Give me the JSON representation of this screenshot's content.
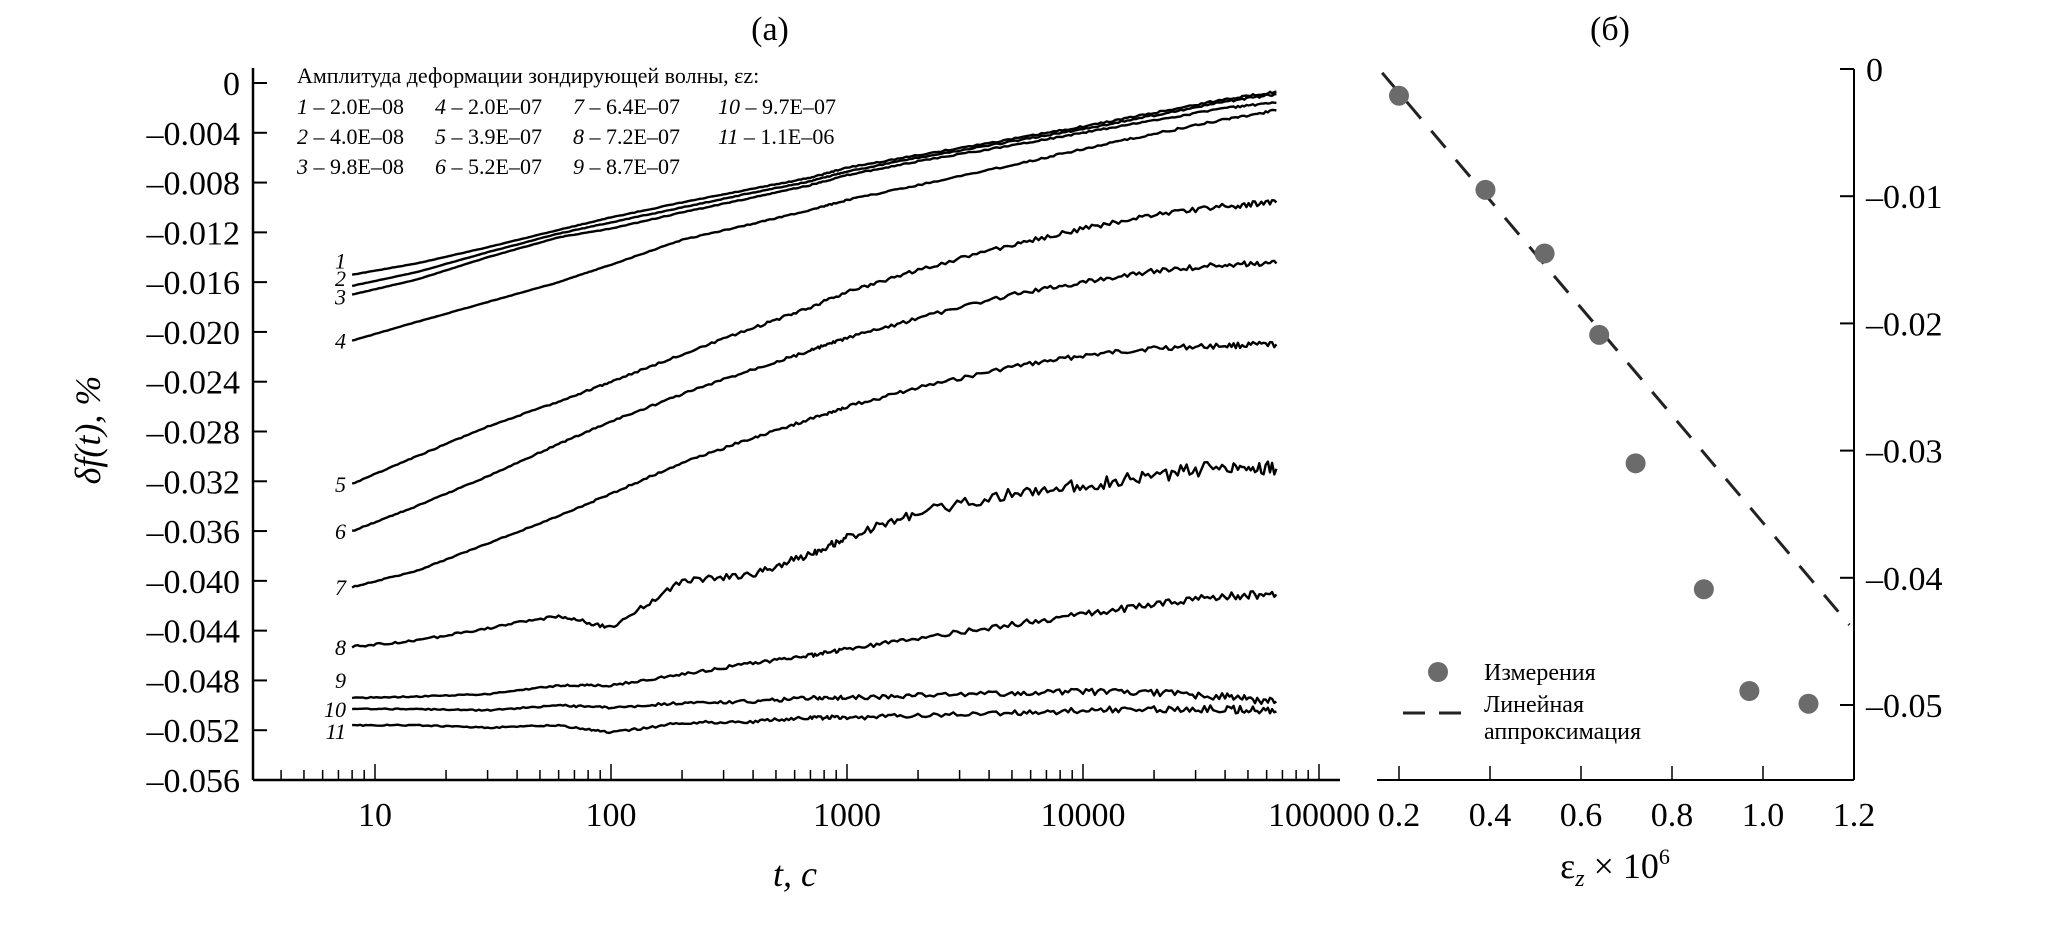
{
  "chart_data": [
    {
      "id": "panel_a",
      "type": "line",
      "title": "(а)",
      "xlabel": "t, с",
      "ylabel": "δf(t), %",
      "xscale": "log",
      "xlim": [
        3,
        100000
      ],
      "ylim": [
        -0.056,
        0
      ],
      "xticks": [
        10,
        100,
        1000,
        10000,
        100000
      ],
      "xtick_labels": [
        "10",
        "100",
        "1000",
        "10000",
        "100000"
      ],
      "yticks": [
        0,
        -0.004,
        -0.008,
        -0.012,
        -0.016,
        -0.02,
        -0.024,
        -0.028,
        -0.032,
        -0.036,
        -0.04,
        -0.044,
        -0.048,
        -0.052,
        -0.056
      ],
      "ytick_labels": [
        "0",
        "–0.004",
        "–0.008",
        "–0.012",
        "–0.016",
        "–0.020",
        "–0.024",
        "–0.028",
        "–0.032",
        "–0.036",
        "–0.040",
        "–0.044",
        "–0.048",
        "–0.052",
        "–0.056"
      ],
      "grid": false,
      "legend": {
        "placement": "top-left",
        "title": "Амплитуда деформации зондирующей волны, εz:",
        "rows": [
          [
            "1 – 2.0E–08",
            "4 – 2.0E–07",
            "7 – 6.4E–07",
            "10 – 9.7E–07"
          ],
          [
            "2 – 4.0E–08",
            "5 – 3.9E–07",
            "8 – 7.2E–07",
            "11 – 1.1E–06"
          ],
          [
            "3 – 9.8E–08",
            "6 – 5.2E–07",
            "9 – 8.7E–07",
            ""
          ]
        ]
      },
      "x": [
        8,
        15,
        30,
        60,
        100,
        200,
        400,
        700,
        1000,
        2000,
        5000,
        10000,
        20000,
        40000,
        66000
      ],
      "series": [
        {
          "name": "1",
          "amplitude": "2.0E-08",
          "values": [
            -0.0154,
            -0.0145,
            -0.0132,
            -0.0118,
            -0.0108,
            -0.0096,
            -0.0085,
            -0.0076,
            -0.0068,
            -0.0058,
            -0.0045,
            -0.0035,
            -0.0024,
            -0.0013,
            -0.0007
          ]
        },
        {
          "name": "2",
          "amplitude": "4.0E-08",
          "values": [
            -0.0163,
            -0.0152,
            -0.0136,
            -0.0121,
            -0.0112,
            -0.01,
            -0.0088,
            -0.0079,
            -0.0071,
            -0.006,
            -0.0047,
            -0.0037,
            -0.0026,
            -0.0015,
            -0.0009
          ]
        },
        {
          "name": "3",
          "amplitude": "9.8E-08",
          "values": [
            -0.017,
            -0.0158,
            -0.014,
            -0.0124,
            -0.0117,
            -0.0104,
            -0.0092,
            -0.0082,
            -0.0074,
            -0.0063,
            -0.005,
            -0.004,
            -0.003,
            -0.002,
            -0.0016
          ]
        },
        {
          "name": "4",
          "amplitude": "2.0E-07",
          "values": [
            -0.0207,
            -0.0192,
            -0.0176,
            -0.016,
            -0.0146,
            -0.0126,
            -0.0113,
            -0.0102,
            -0.0094,
            -0.0082,
            -0.0066,
            -0.0053,
            -0.0041,
            -0.0029,
            -0.0022
          ]
        },
        {
          "name": "5",
          "amplitude": "3.9E-07",
          "values": [
            -0.0322,
            -0.03,
            -0.0276,
            -0.0256,
            -0.024,
            -0.0218,
            -0.0197,
            -0.018,
            -0.0168,
            -0.015,
            -0.013,
            -0.0117,
            -0.0106,
            -0.0099,
            -0.0096
          ]
        },
        {
          "name": "6",
          "amplitude": "5.2E-07",
          "values": [
            -0.036,
            -0.034,
            -0.0316,
            -0.029,
            -0.0272,
            -0.025,
            -0.023,
            -0.0215,
            -0.0205,
            -0.0189,
            -0.017,
            -0.016,
            -0.0151,
            -0.0146,
            -0.0145
          ]
        },
        {
          "name": "7",
          "amplitude": "6.4E-07",
          "values": [
            -0.0405,
            -0.0392,
            -0.037,
            -0.0348,
            -0.033,
            -0.0305,
            -0.0285,
            -0.027,
            -0.026,
            -0.0245,
            -0.0228,
            -0.0219,
            -0.0213,
            -0.0211,
            -0.021
          ]
        },
        {
          "name": "8",
          "amplitude": "7.2E-07",
          "values": [
            -0.0453,
            -0.0448,
            -0.0438,
            -0.0428,
            -0.0438,
            -0.04,
            -0.0395,
            -0.0378,
            -0.0365,
            -0.0345,
            -0.033,
            -0.0323,
            -0.0316,
            -0.0307,
            -0.031
          ]
        },
        {
          "name": "9",
          "amplitude": "8.7E-07",
          "values": [
            -0.0494,
            -0.0493,
            -0.0491,
            -0.0484,
            -0.0484,
            -0.0475,
            -0.0466,
            -0.046,
            -0.0455,
            -0.0446,
            -0.0435,
            -0.0427,
            -0.0419,
            -0.0412,
            -0.0411
          ]
        },
        {
          "name": "10",
          "amplitude": "9.7E-07",
          "values": [
            -0.0503,
            -0.0503,
            -0.0504,
            -0.05,
            -0.0502,
            -0.0498,
            -0.0497,
            -0.0494,
            -0.0494,
            -0.0492,
            -0.049,
            -0.0489,
            -0.049,
            -0.0493,
            -0.0497
          ]
        },
        {
          "name": "11",
          "amplitude": "1.1E-06",
          "values": [
            -0.0516,
            -0.0516,
            -0.0518,
            -0.0516,
            -0.0522,
            -0.0514,
            -0.0513,
            -0.051,
            -0.051,
            -0.0508,
            -0.0506,
            -0.0504,
            -0.0503,
            -0.0503,
            -0.0505
          ]
        }
      ]
    },
    {
      "id": "panel_b",
      "type": "scatter",
      "title": "(б)",
      "xlabel": "εz × 10⁶",
      "ylabel": "",
      "xlim": [
        0.15,
        1.2
      ],
      "ylim": [
        -0.0558,
        0
      ],
      "xticks": [
        0.2,
        0.4,
        0.6,
        0.8,
        1.0,
        1.2
      ],
      "xtick_labels": [
        "0.2",
        "0.4",
        "0.6",
        "0.8",
        "1.0",
        "1.2"
      ],
      "yticks": [
        0,
        -0.01,
        -0.02,
        -0.03,
        -0.04,
        -0.05
      ],
      "ytick_labels": [
        "0",
        "–0.01",
        "–0.02",
        "–0.03",
        "–0.04",
        "–0.05"
      ],
      "yaxis_side": "right",
      "grid": false,
      "legend": {
        "placement": "bottom-left",
        "entries": [
          {
            "label": "Измерения",
            "marker": "circle"
          },
          {
            "label": "Линейная аппроксимация",
            "line1": "Линейная",
            "line2": "аппроксимация",
            "marker": "dashed"
          }
        ]
      },
      "series": [
        {
          "name": "Измерения",
          "color": "#6b6b6b",
          "x": [
            0.2,
            0.39,
            0.52,
            0.64,
            0.72,
            0.87,
            0.97,
            1.1
          ],
          "y": [
            -0.0021,
            -0.0095,
            -0.0145,
            -0.0209,
            -0.031,
            -0.0409,
            -0.0489,
            -0.0499
          ]
        },
        {
          "name": "Линейная аппроксимация",
          "color": "#222222",
          "x": [
            0.163,
            1.19
          ],
          "y": [
            -0.0003,
            -0.0437
          ]
        }
      ]
    }
  ]
}
